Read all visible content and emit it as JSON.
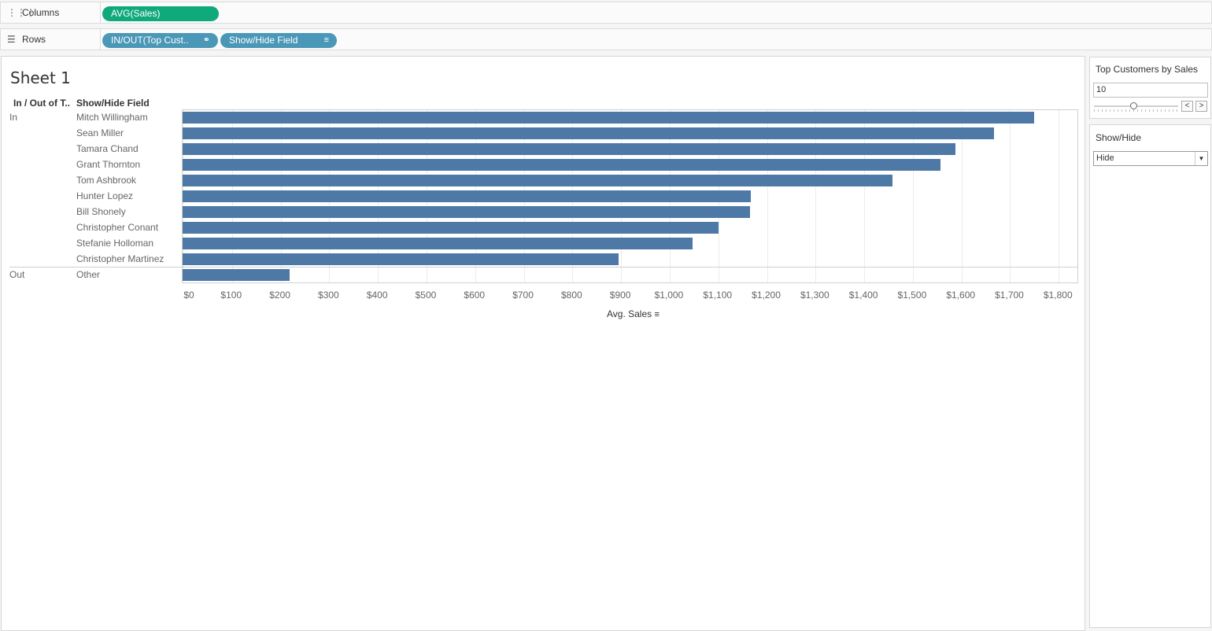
{
  "shelves": {
    "columns": {
      "label": "Columns",
      "icon": "columns-icon",
      "pills": [
        "AVG(Sales)"
      ]
    },
    "rows": {
      "label": "Rows",
      "icon": "rows-icon",
      "pills": [
        "IN/OUT(Top Cust..",
        "Show/Hide Field"
      ]
    }
  },
  "sheet": {
    "title": "Sheet 1",
    "headers": {
      "group": "In / Out of T..",
      "name": "Show/Hide Field"
    }
  },
  "chart_data": {
    "type": "bar",
    "orientation": "horizontal",
    "groups": [
      {
        "label": "In",
        "categories": [
          "Mitch Willingham",
          "Sean Miller",
          "Tamara Chand",
          "Grant Thornton",
          "Tom Ashbrook",
          "Hunter Lopez",
          "Bill Shonely",
          "Christopher Conant",
          "Stefanie Holloman",
          "Christopher Martinez"
        ],
        "values": [
          1751,
          1669,
          1589,
          1559,
          1460,
          1169,
          1166,
          1102,
          1049,
          896
        ]
      },
      {
        "label": "Out",
        "categories": [
          "Other"
        ],
        "values": [
          220
        ]
      }
    ],
    "xlabel": "Avg. Sales",
    "xlim": [
      0,
      1840
    ],
    "ticks": [
      0,
      100,
      200,
      300,
      400,
      500,
      600,
      700,
      800,
      900,
      1000,
      1100,
      1200,
      1300,
      1400,
      1500,
      1600,
      1700,
      1800
    ],
    "tick_labels": [
      "$0",
      "$100",
      "$200",
      "$300",
      "$400",
      "$500",
      "$600",
      "$700",
      "$800",
      "$900",
      "$1,000",
      "$1,100",
      "$1,200",
      "$1,300",
      "$1,400",
      "$1,500",
      "$1,600",
      "$1,700",
      "$1,800"
    ],
    "bar_color": "#4e79a7",
    "grid": true
  },
  "parameters": {
    "top_customers": {
      "title": "Top Customers by Sales",
      "value": "10",
      "prev": "<",
      "next": ">"
    },
    "show_hide": {
      "title": "Show/Hide",
      "value": "Hide",
      "caret": "▼"
    }
  },
  "colors": {
    "measure_pill": "#0fa97c",
    "dimension_pill": "#4a97b7",
    "bar": "#4e79a7"
  }
}
